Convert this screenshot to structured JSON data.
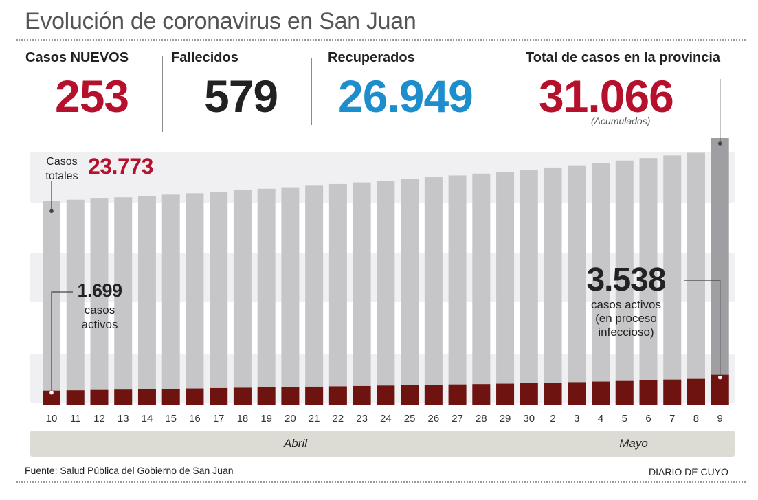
{
  "header": {
    "title": "Evolución de coronavirus en San Juan"
  },
  "stats": {
    "nuevos_label": "Casos NUEVOS",
    "nuevos_value": "253",
    "fallecidos_label": "Fallecidos",
    "fallecidos_value": "579",
    "recuperados_label": "Recuperados",
    "recuperados_value": "26.949",
    "total_label": "Total de casos en la provincia",
    "total_value": "31.066",
    "total_note": "(Acumulados)"
  },
  "colors": {
    "red": "#b5112c",
    "blue": "#1e8dcb",
    "dark": "#222222",
    "bar_total": "#c6c6c9",
    "bar_total_last": "#9e9ea3",
    "bar_active": "#6e1310",
    "band": "#f0f0f2",
    "month_bar": "#dcdcd4"
  },
  "annotations": {
    "start_total_label": "Casos\ntotales",
    "start_total_value": "23.773",
    "start_active_value": "1.699",
    "start_active_label": "casos\nactivos",
    "end_active_value": "3.538",
    "end_active_label": "casos activos\n(en proceso\ninfeccioso)"
  },
  "months": {
    "abril": "Abril",
    "mayo": "Mayo"
  },
  "footer": {
    "source": "Fuente: Salud Pública del Gobierno de San Juan",
    "brand": "DIARIO DE CUYO"
  },
  "chart_data": {
    "type": "bar",
    "categories": [
      "10",
      "11",
      "12",
      "13",
      "14",
      "15",
      "16",
      "17",
      "18",
      "19",
      "20",
      "21",
      "22",
      "23",
      "24",
      "25",
      "26",
      "27",
      "28",
      "29",
      "30",
      "2",
      "3",
      "4",
      "5",
      "6",
      "7",
      "8",
      "9"
    ],
    "series": [
      {
        "values": [
          23773,
          23900,
          24030,
          24180,
          24330,
          24490,
          24650,
          24820,
          25000,
          25170,
          25350,
          25530,
          25720,
          25910,
          26110,
          26310,
          26510,
          26720,
          26930,
          27150,
          27380,
          27640,
          27900,
          28170,
          28450,
          28740,
          29040,
          29350,
          31066
        ]
      },
      {
        "values": [
          1699,
          1740,
          1780,
          1820,
          1860,
          1900,
          1950,
          2000,
          2040,
          2080,
          2120,
          2160,
          2200,
          2240,
          2290,
          2340,
          2380,
          2420,
          2460,
          2510,
          2560,
          2620,
          2680,
          2750,
          2820,
          2900,
          2980,
          3060,
          3538
        ]
      }
    ],
    "x_groups": [
      {
        "label": "Abril",
        "from": "10",
        "to": "30"
      },
      {
        "label": "Mayo",
        "from": "2",
        "to": "9"
      }
    ],
    "ylim": [
      0,
      31066
    ],
    "grid": false
  }
}
